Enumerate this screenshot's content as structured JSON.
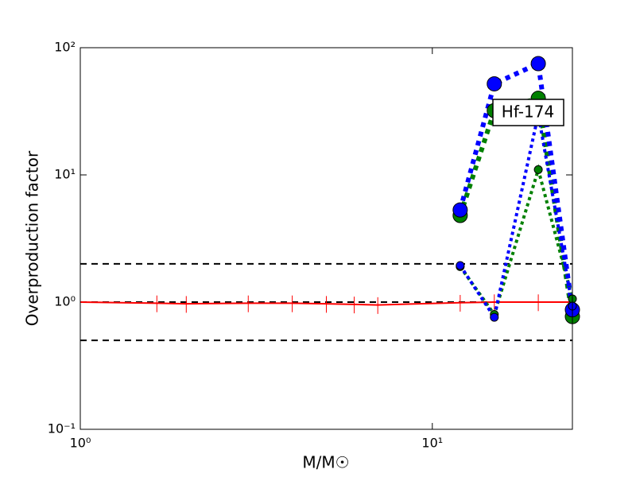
{
  "chart_data": {
    "type": "line",
    "xlabel": "M/M☉",
    "ylabel": "Overproduction factor",
    "annotation": "Hf-174",
    "xscale": "log",
    "yscale": "log",
    "xlim": [
      1,
      25
    ],
    "ylim": [
      0.1,
      100
    ],
    "xticks": [
      {
        "value": 1,
        "label": "10⁰"
      },
      {
        "value": 10,
        "label": "10¹"
      }
    ],
    "yticks": [
      {
        "value": 0.1,
        "label": "10⁻¹"
      },
      {
        "value": 1,
        "label": "10⁰"
      },
      {
        "value": 10,
        "label": "10¹"
      },
      {
        "value": 100,
        "label": "10²"
      }
    ],
    "hlines": {
      "values": [
        2,
        1,
        0.5
      ],
      "color": "#000000",
      "linestyle": "dashed"
    },
    "reference": {
      "color": "#ff0000",
      "x": [
        1,
        1.65,
        2,
        3,
        4,
        5,
        6,
        7,
        12,
        15,
        20,
        25
      ],
      "values": [
        1,
        0.98,
        0.97,
        0.98,
        0.98,
        0.97,
        0.96,
        0.95,
        0.99,
        1,
        1,
        1
      ],
      "errors": [
        0.15,
        0.15,
        0.15,
        0.15,
        0.15,
        0.15,
        0.15,
        0.15,
        0.15,
        0.15,
        0.15,
        0.15
      ]
    },
    "series": [
      {
        "color": "#008000",
        "x": [
          12,
          15,
          20,
          25
        ],
        "values": [
          4.8,
          32,
          40,
          0.77
        ],
        "linestyle": "dotted",
        "line_width": 6,
        "marker_size": 9
      },
      {
        "color": "#0000ff",
        "x": [
          12,
          15,
          20,
          25
        ],
        "values": [
          5.3,
          52,
          75,
          0.87
        ],
        "linestyle": "dotted",
        "line_width": 6,
        "marker_size": 9
      },
      {
        "color": "#008000",
        "x": [
          12,
          15,
          20,
          25
        ],
        "values": [
          1.9,
          0.8,
          11,
          1.06
        ],
        "linestyle": "dotted",
        "line_width": 4,
        "marker_size": 5
      },
      {
        "color": "#0000ff",
        "x": [
          12,
          15,
          20,
          25
        ],
        "values": [
          1.94,
          0.76,
          30,
          0.93
        ],
        "linestyle": "dotted",
        "line_width": 4,
        "marker_size": 5
      }
    ]
  }
}
